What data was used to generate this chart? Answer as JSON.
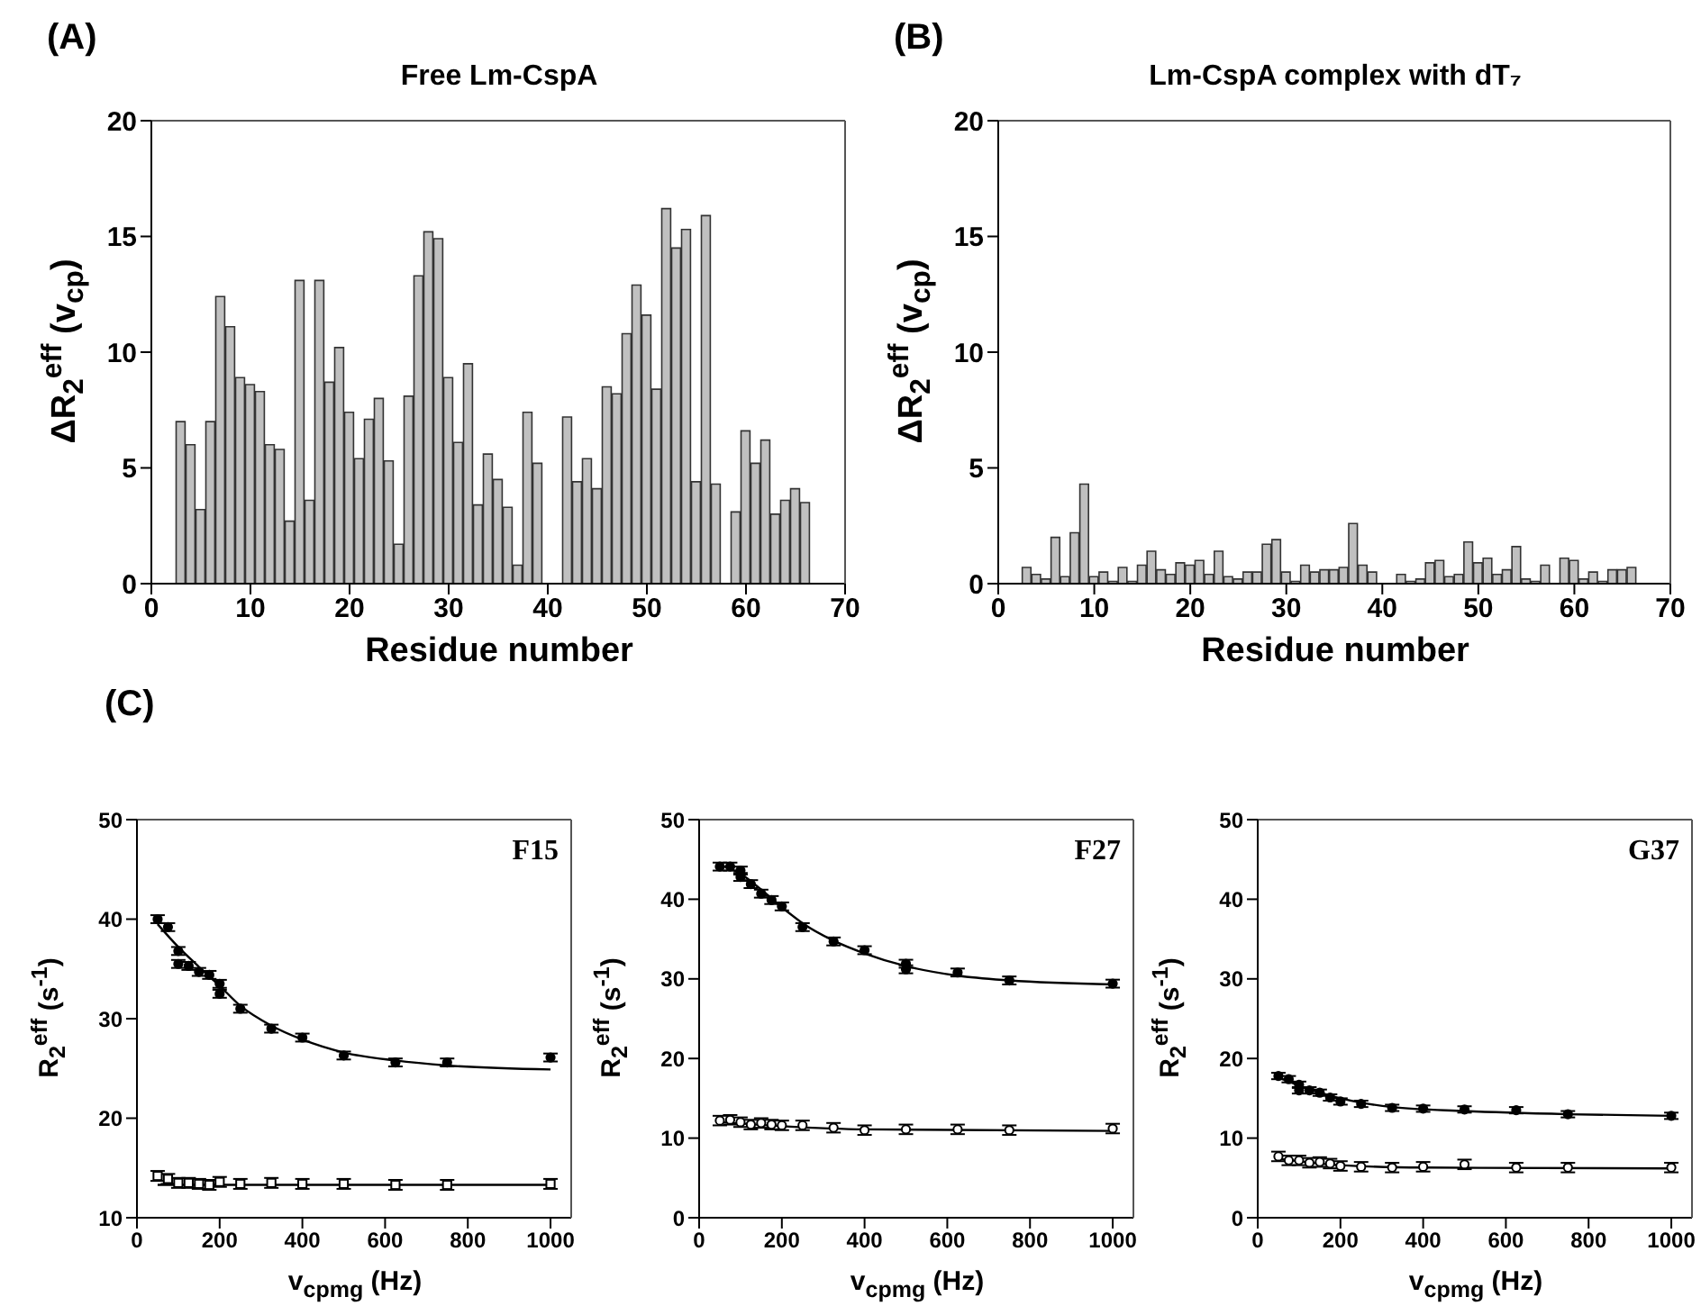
{
  "chart_data": [
    {
      "type": "bar",
      "title": "Free Lm-CspA",
      "annotations": [
        "(A)"
      ],
      "xlabel": "Residue number",
      "ylabel": "ΔR$_{2}$$^{eff}$ (v$_{cp}$)",
      "color": "#c0c0c0",
      "xlim": [
        0,
        70
      ],
      "xticks": [
        0,
        10,
        20,
        30,
        40,
        50,
        60,
        70
      ],
      "ylim": [
        0,
        20
      ],
      "yticks": [
        0,
        5,
        10,
        15,
        20
      ],
      "x": [
        3,
        4,
        5,
        6,
        7,
        8,
        9,
        10,
        11,
        12,
        13,
        14,
        15,
        16,
        17,
        18,
        19,
        20,
        21,
        22,
        23,
        24,
        25,
        26,
        27,
        28,
        29,
        30,
        31,
        32,
        33,
        34,
        35,
        36,
        37,
        38,
        39,
        40,
        41,
        42,
        43,
        44,
        45,
        46,
        47,
        48,
        49,
        50,
        51,
        52,
        53,
        54,
        55,
        56,
        57,
        58,
        59,
        60,
        61,
        62,
        63,
        64,
        65,
        66
      ],
      "values": [
        7.0,
        6.0,
        3.2,
        7.0,
        12.4,
        11.1,
        8.9,
        8.6,
        8.3,
        6.0,
        5.8,
        2.7,
        13.1,
        3.6,
        13.1,
        8.7,
        10.2,
        7.4,
        5.4,
        7.1,
        8.0,
        5.3,
        1.7,
        8.1,
        13.3,
        15.2,
        14.9,
        8.9,
        6.1,
        9.5,
        3.4,
        5.6,
        4.5,
        3.3,
        0.8,
        7.4,
        5.2,
        null,
        null,
        7.2,
        4.4,
        5.4,
        4.1,
        8.5,
        8.2,
        10.8,
        12.9,
        11.6,
        8.4,
        16.2,
        14.5,
        15.3,
        4.4,
        15.9,
        4.3,
        null,
        3.1,
        6.6,
        5.2,
        6.2,
        3.0,
        3.6,
        4.1,
        3.5
      ]
    },
    {
      "type": "bar",
      "title": "Lm-CspA complex with dT₇",
      "annotations": [
        "(B)"
      ],
      "xlabel": "Residue number",
      "ylabel": "ΔR$_{2}$$^{eff}$ (v$_{cp}$)",
      "color": "#c0c0c0",
      "xlim": [
        0,
        70
      ],
      "xticks": [
        0,
        10,
        20,
        30,
        40,
        50,
        60,
        70
      ],
      "ylim": [
        0,
        20
      ],
      "yticks": [
        0,
        5,
        10,
        15,
        20
      ],
      "x": [
        3,
        4,
        5,
        6,
        7,
        8,
        9,
        10,
        11,
        12,
        13,
        14,
        15,
        16,
        17,
        18,
        19,
        20,
        21,
        22,
        23,
        24,
        25,
        26,
        27,
        28,
        29,
        30,
        31,
        32,
        33,
        34,
        35,
        36,
        37,
        38,
        39,
        40,
        41,
        42,
        43,
        44,
        45,
        46,
        47,
        48,
        49,
        50,
        51,
        52,
        53,
        54,
        55,
        56,
        57,
        58,
        59,
        60,
        61,
        62,
        63,
        64,
        65,
        66
      ],
      "values": [
        0.7,
        0.4,
        0.2,
        2.0,
        0.3,
        2.2,
        4.3,
        0.3,
        0.5,
        0.1,
        0.7,
        0.1,
        0.8,
        1.4,
        0.6,
        0.4,
        0.9,
        0.8,
        1.0,
        0.4,
        1.4,
        0.3,
        0.2,
        0.5,
        0.5,
        1.7,
        1.9,
        0.5,
        0.1,
        0.8,
        0.5,
        0.6,
        0.6,
        0.7,
        2.6,
        0.8,
        0.5,
        null,
        null,
        0.4,
        0.1,
        0.2,
        0.9,
        1.0,
        0.3,
        0.4,
        1.8,
        0.9,
        1.1,
        0.4,
        0.6,
        1.6,
        0.2,
        0.1,
        0.8,
        null,
        1.1,
        1.0,
        0.2,
        0.5,
        0.1,
        0.6,
        0.6,
        0.7
      ]
    },
    {
      "type": "scatter",
      "title": "F15",
      "annotations": [
        "(C)"
      ],
      "xlabel": "v$_{cpmg}$ (Hz)",
      "ylabel": "R$_{2}$$^{eff}$ (s$^{-1}$)",
      "xlim": [
        0,
        1050
      ],
      "xticks": [
        0,
        200,
        400,
        600,
        800,
        1000
      ],
      "ylim": [
        10,
        50
      ],
      "yticks": [
        10,
        20,
        30,
        40,
        50
      ],
      "series": [
        {
          "type": "scatter",
          "marker": "circle",
          "color": "#000000",
          "x": [
            50,
            75,
            100,
            100,
            125,
            150,
            175,
            200,
            200,
            250,
            325,
            400,
            500,
            625,
            750,
            1000
          ],
          "values": [
            40.0,
            39.2,
            36.8,
            35.5,
            35.3,
            34.7,
            34.4,
            33.5,
            32.5,
            31.0,
            29.0,
            28.1,
            26.3,
            25.6,
            25.6,
            26.1
          ],
          "errors": [
            0.4,
            0.4,
            0.4,
            0.4,
            0.4,
            0.4,
            0.4,
            0.4,
            0.4,
            0.4,
            0.4,
            0.4,
            0.4,
            0.4,
            0.4,
            0.4
          ]
        },
        {
          "type": "scatter",
          "marker": "square",
          "color": "#ffffff",
          "x": [
            50,
            75,
            100,
            125,
            150,
            175,
            200,
            250,
            325,
            400,
            500,
            625,
            750,
            1000
          ],
          "values": [
            14.2,
            13.9,
            13.5,
            13.5,
            13.4,
            13.3,
            13.6,
            13.4,
            13.5,
            13.4,
            13.4,
            13.3,
            13.3,
            13.4
          ],
          "errors": [
            0.5,
            0.5,
            0.5,
            0.5,
            0.5,
            0.5,
            0.5,
            0.5,
            0.5,
            0.5,
            0.5,
            0.5,
            0.5,
            0.5
          ]
        },
        {
          "type": "line",
          "marker": "none",
          "color": "#000000",
          "x": [
            50,
            100,
            150,
            200,
            250,
            325,
            400,
            500,
            625,
            750,
            1000
          ],
          "values": [
            39.5,
            37.2,
            35.2,
            33.3,
            31.3,
            29.3,
            27.9,
            26.6,
            25.8,
            25.3,
            24.9
          ]
        },
        {
          "type": "line",
          "marker": "none",
          "color": "#000000",
          "x": [
            50,
            1000
          ],
          "values": [
            13.3,
            13.3
          ]
        }
      ]
    },
    {
      "type": "scatter",
      "title": "F27",
      "xlabel": "v$_{cpmg}$ (Hz)",
      "ylabel": "R$_{2}$$^{eff}$ (s$^{-1}$)",
      "xlim": [
        0,
        1050
      ],
      "xticks": [
        0,
        200,
        400,
        600,
        800,
        1000
      ],
      "ylim": [
        0,
        50
      ],
      "yticks": [
        0,
        10,
        20,
        30,
        40,
        50
      ],
      "series": [
        {
          "type": "scatter",
          "marker": "circle",
          "color": "#000000",
          "x": [
            50,
            75,
            100,
            100,
            125,
            150,
            175,
            200,
            250,
            325,
            400,
            500,
            500,
            625,
            750,
            1000
          ],
          "values": [
            44.1,
            44.1,
            43.6,
            42.8,
            41.9,
            40.7,
            39.9,
            39.1,
            36.5,
            34.7,
            33.6,
            31.9,
            31.2,
            30.8,
            29.8,
            29.4
          ],
          "errors": [
            0.5,
            0.5,
            0.5,
            0.5,
            0.5,
            0.5,
            0.5,
            0.5,
            0.5,
            0.5,
            0.5,
            0.5,
            0.5,
            0.5,
            0.5,
            0.5
          ]
        },
        {
          "type": "scatter",
          "marker": "circle",
          "color": "#ffffff",
          "x": [
            50,
            75,
            100,
            125,
            150,
            175,
            200,
            250,
            325,
            400,
            500,
            625,
            750,
            1000
          ],
          "values": [
            12.2,
            12.3,
            12.0,
            11.7,
            11.9,
            11.7,
            11.6,
            11.6,
            11.3,
            11.0,
            11.1,
            11.1,
            11.0,
            11.2
          ],
          "errors": [
            0.6,
            0.6,
            0.6,
            0.6,
            0.6,
            0.6,
            0.6,
            0.6,
            0.6,
            0.6,
            0.6,
            0.6,
            0.6,
            0.6
          ]
        },
        {
          "type": "line",
          "marker": "none",
          "color": "#000000",
          "x": [
            50,
            100,
            150,
            200,
            250,
            325,
            400,
            500,
            625,
            750,
            1000
          ],
          "values": [
            44.3,
            43.2,
            41.2,
            39.0,
            37.0,
            34.8,
            33.2,
            31.6,
            30.4,
            29.8,
            29.3
          ]
        },
        {
          "type": "line",
          "marker": "none",
          "color": "#000000",
          "x": [
            50,
            200,
            400,
            1000
          ],
          "values": [
            12.0,
            11.5,
            11.1,
            10.9
          ]
        }
      ]
    },
    {
      "type": "scatter",
      "title": "G37",
      "xlabel": "v$_{cpmg}$ (Hz)",
      "ylabel": "R$_{2}$$^{eff}$ (s$^{-1}$)",
      "xlim": [
        0,
        1050
      ],
      "xticks": [
        0,
        200,
        400,
        600,
        800,
        1000
      ],
      "ylim": [
        0,
        50
      ],
      "yticks": [
        0,
        10,
        20,
        30,
        40,
        50
      ],
      "series": [
        {
          "type": "scatter",
          "marker": "circle",
          "color": "#000000",
          "x": [
            50,
            75,
            100,
            100,
            125,
            150,
            175,
            200,
            250,
            325,
            400,
            500,
            625,
            750,
            1000
          ],
          "values": [
            17.8,
            17.4,
            16.7,
            16.0,
            16.0,
            15.7,
            15.1,
            14.6,
            14.3,
            13.8,
            13.7,
            13.6,
            13.5,
            13.0,
            12.8
          ],
          "errors": [
            0.4,
            0.4,
            0.4,
            0.4,
            0.4,
            0.4,
            0.4,
            0.4,
            0.4,
            0.4,
            0.4,
            0.4,
            0.4,
            0.4,
            0.4
          ]
        },
        {
          "type": "scatter",
          "marker": "circle",
          "color": "#ffffff",
          "x": [
            50,
            75,
            100,
            125,
            150,
            175,
            200,
            250,
            325,
            400,
            500,
            625,
            750,
            1000
          ],
          "values": [
            7.7,
            7.2,
            7.2,
            6.9,
            7.0,
            6.8,
            6.5,
            6.4,
            6.3,
            6.4,
            6.7,
            6.3,
            6.3,
            6.3
          ],
          "errors": [
            0.6,
            0.6,
            0.6,
            0.6,
            0.6,
            0.6,
            0.6,
            0.6,
            0.6,
            0.6,
            0.6,
            0.6,
            0.6,
            0.6
          ]
        },
        {
          "type": "line",
          "marker": "none",
          "color": "#000000",
          "x": [
            50,
            100,
            200,
            325,
            500,
            750,
            1000
          ],
          "values": [
            17.6,
            16.6,
            15.0,
            13.9,
            13.4,
            13.0,
            12.8
          ]
        },
        {
          "type": "line",
          "marker": "none",
          "color": "#000000",
          "x": [
            50,
            200,
            400,
            1000
          ],
          "values": [
            7.4,
            6.6,
            6.3,
            6.2
          ]
        }
      ]
    }
  ]
}
